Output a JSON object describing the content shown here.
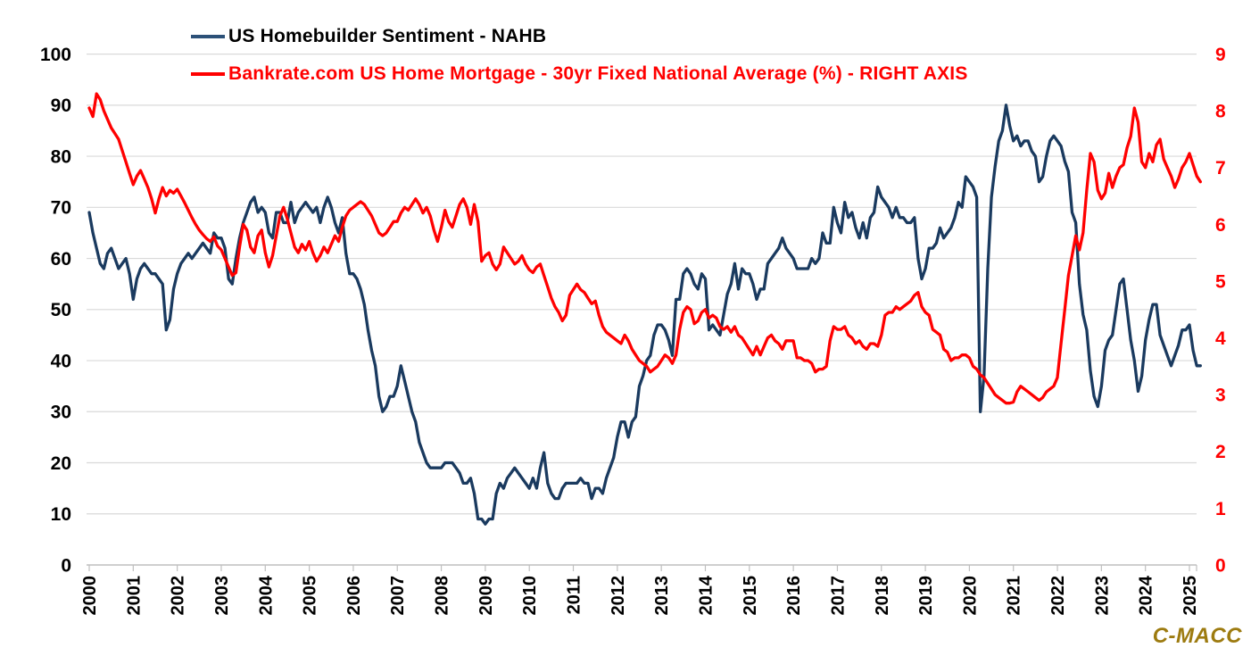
{
  "legend": [
    {
      "label": "US Homebuilder Sentiment - NAHB",
      "color": "#1a3a5f"
    },
    {
      "label": "Bankrate.com US Home Mortgage - 30yr Fixed National Average (%) - RIGHT AXIS",
      "color": "#ff0000"
    }
  ],
  "watermark": "C-MACC",
  "colors": {
    "nahb_line": "#1a3a5f",
    "mortgage_line": "#ff0000",
    "gridline": "#d9d9d9",
    "axis": "#bfbfbf",
    "left_tick_text": "#000000",
    "right_tick_text": "#ff0000",
    "x_tick_text": "#000000",
    "watermark_text": "#9d7b10"
  },
  "chart_data": {
    "type": "line",
    "x_start_year": 2000,
    "x_step_months": 1,
    "x_ticks": [
      2000,
      2001,
      2002,
      2003,
      2004,
      2005,
      2006,
      2007,
      2008,
      2009,
      2010,
      2011,
      2012,
      2013,
      2014,
      2015,
      2016,
      2017,
      2018,
      2019,
      2020,
      2021,
      2022,
      2023,
      2024,
      2025
    ],
    "left_axis": {
      "label": "",
      "min": 0,
      "max": 100,
      "ticks": [
        0,
        10,
        20,
        30,
        40,
        50,
        60,
        70,
        80,
        90,
        100
      ]
    },
    "right_axis": {
      "label": "",
      "min": 0,
      "max": 9,
      "ticks": [
        0,
        1,
        2,
        3,
        4,
        5,
        6,
        7,
        8,
        9
      ]
    },
    "grid": true,
    "legend_position": "top-left",
    "series": [
      {
        "name": "US Homebuilder Sentiment - NAHB",
        "axis": "left",
        "color": "#1a3a5f",
        "values": [
          69,
          65,
          62,
          59,
          58,
          61,
          62,
          60,
          58,
          59,
          60,
          57,
          52,
          56,
          58,
          59,
          58,
          57,
          57,
          56,
          55,
          46,
          48,
          54,
          57,
          59,
          60,
          61,
          60,
          61,
          62,
          63,
          62,
          61,
          65,
          64,
          64,
          62,
          56,
          55,
          60,
          64,
          67,
          69,
          71,
          72,
          69,
          70,
          69,
          65,
          64,
          69,
          69,
          67,
          67,
          71,
          67,
          69,
          70,
          71,
          70,
          69,
          70,
          67,
          70,
          72,
          70,
          67,
          65,
          68,
          61,
          57,
          57,
          56,
          54,
          51,
          46,
          42,
          39,
          33,
          30,
          31,
          33,
          33,
          35,
          39,
          36,
          33,
          30,
          28,
          24,
          22,
          20,
          19,
          19,
          19,
          19,
          20,
          20,
          20,
          19,
          18,
          16,
          16,
          17,
          14,
          9,
          9,
          8,
          9,
          9,
          14,
          16,
          15,
          17,
          18,
          19,
          18,
          17,
          16,
          15,
          17,
          15,
          19,
          22,
          16,
          14,
          13,
          13,
          15,
          16,
          16,
          16,
          16,
          17,
          16,
          16,
          13,
          15,
          15,
          14,
          17,
          19,
          21,
          25,
          28,
          28,
          25,
          28,
          29,
          35,
          37,
          40,
          41,
          45,
          47,
          47,
          46,
          44,
          41,
          52,
          52,
          57,
          58,
          57,
          55,
          54,
          57,
          56,
          46,
          47,
          46,
          45,
          49,
          53,
          55,
          59,
          54,
          58,
          57,
          57,
          55,
          52,
          54,
          54,
          59,
          60,
          61,
          62,
          64,
          62,
          61,
          60,
          58,
          58,
          58,
          58,
          60,
          59,
          60,
          65,
          63,
          63,
          70,
          67,
          65,
          71,
          68,
          69,
          66,
          64,
          67,
          64,
          68,
          69,
          74,
          72,
          71,
          70,
          68,
          70,
          68,
          68,
          67,
          67,
          68,
          60,
          56,
          58,
          62,
          62,
          63,
          66,
          64,
          65,
          66,
          68,
          71,
          70,
          76,
          75,
          74,
          72,
          30,
          37,
          58,
          72,
          78,
          83,
          85,
          90,
          86,
          83,
          84,
          82,
          83,
          83,
          81,
          80,
          75,
          76,
          80,
          83,
          84,
          83,
          82,
          79,
          77,
          69,
          67,
          55,
          49,
          46,
          38,
          33,
          31,
          35,
          42,
          44,
          45,
          50,
          55,
          56,
          50,
          44,
          40,
          34,
          37,
          44,
          48,
          51,
          51,
          45,
          43,
          41,
          39,
          41,
          43,
          46,
          46,
          47,
          42,
          39,
          39
        ]
      },
      {
        "name": "Bankrate.com US Home Mortgage - 30yr Fixed National Average (%) - RIGHT AXIS",
        "axis": "right",
        "color": "#ff0000",
        "values": [
          8.05,
          7.9,
          8.3,
          8.2,
          8.0,
          7.85,
          7.7,
          7.6,
          7.5,
          7.3,
          7.1,
          6.9,
          6.7,
          6.85,
          6.95,
          6.8,
          6.65,
          6.45,
          6.2,
          6.45,
          6.65,
          6.5,
          6.6,
          6.55,
          6.62,
          6.5,
          6.38,
          6.25,
          6.12,
          6.0,
          5.9,
          5.82,
          5.75,
          5.7,
          5.78,
          5.62,
          5.55,
          5.4,
          5.25,
          5.1,
          5.15,
          5.6,
          6.0,
          5.9,
          5.6,
          5.5,
          5.8,
          5.9,
          5.5,
          5.25,
          5.45,
          5.8,
          6.15,
          6.3,
          6.1,
          5.85,
          5.6,
          5.5,
          5.65,
          5.55,
          5.7,
          5.5,
          5.35,
          5.45,
          5.6,
          5.5,
          5.65,
          5.8,
          5.7,
          5.95,
          6.15,
          6.25,
          6.3,
          6.35,
          6.4,
          6.35,
          6.25,
          6.15,
          6.0,
          5.85,
          5.8,
          5.85,
          5.95,
          6.05,
          6.05,
          6.2,
          6.3,
          6.25,
          6.35,
          6.45,
          6.35,
          6.2,
          6.3,
          6.15,
          5.9,
          5.7,
          5.95,
          6.25,
          6.05,
          5.95,
          6.15,
          6.35,
          6.45,
          6.3,
          6.0,
          6.35,
          6.05,
          5.35,
          5.45,
          5.5,
          5.3,
          5.2,
          5.3,
          5.6,
          5.5,
          5.4,
          5.3,
          5.35,
          5.45,
          5.3,
          5.2,
          5.15,
          5.25,
          5.3,
          5.1,
          4.9,
          4.7,
          4.55,
          4.45,
          4.3,
          4.4,
          4.75,
          4.85,
          4.95,
          4.85,
          4.8,
          4.7,
          4.6,
          4.65,
          4.4,
          4.2,
          4.1,
          4.05,
          4.0,
          3.95,
          3.9,
          4.05,
          3.95,
          3.8,
          3.7,
          3.6,
          3.55,
          3.5,
          3.4,
          3.45,
          3.5,
          3.6,
          3.7,
          3.65,
          3.55,
          3.7,
          4.15,
          4.45,
          4.55,
          4.5,
          4.25,
          4.3,
          4.45,
          4.5,
          4.35,
          4.4,
          4.35,
          4.2,
          4.15,
          4.2,
          4.1,
          4.2,
          4.05,
          4.0,
          3.9,
          3.8,
          3.7,
          3.85,
          3.7,
          3.85,
          4.0,
          4.05,
          3.95,
          3.9,
          3.8,
          3.95,
          3.95,
          3.95,
          3.65,
          3.65,
          3.6,
          3.6,
          3.55,
          3.4,
          3.45,
          3.45,
          3.5,
          3.95,
          4.2,
          4.15,
          4.15,
          4.2,
          4.05,
          4.0,
          3.9,
          3.95,
          3.85,
          3.8,
          3.9,
          3.9,
          3.85,
          4.05,
          4.4,
          4.45,
          4.45,
          4.55,
          4.5,
          4.55,
          4.6,
          4.65,
          4.75,
          4.8,
          4.55,
          4.45,
          4.4,
          4.15,
          4.1,
          4.05,
          3.8,
          3.75,
          3.6,
          3.65,
          3.65,
          3.7,
          3.7,
          3.65,
          3.5,
          3.45,
          3.35,
          3.3,
          3.2,
          3.1,
          3.0,
          2.95,
          2.9,
          2.85,
          2.85,
          2.87,
          3.05,
          3.15,
          3.1,
          3.05,
          3.0,
          2.95,
          2.9,
          2.95,
          3.05,
          3.1,
          3.15,
          3.3,
          3.9,
          4.5,
          5.1,
          5.45,
          5.8,
          5.55,
          5.85,
          6.6,
          7.25,
          7.1,
          6.6,
          6.45,
          6.55,
          6.9,
          6.65,
          6.85,
          7.0,
          7.05,
          7.35,
          7.55,
          8.05,
          7.8,
          7.1,
          7.0,
          7.25,
          7.1,
          7.4,
          7.5,
          7.15,
          7.0,
          6.85,
          6.65,
          6.8,
          7.0,
          7.1,
          7.25,
          7.05,
          6.85,
          6.75
        ]
      }
    ]
  }
}
